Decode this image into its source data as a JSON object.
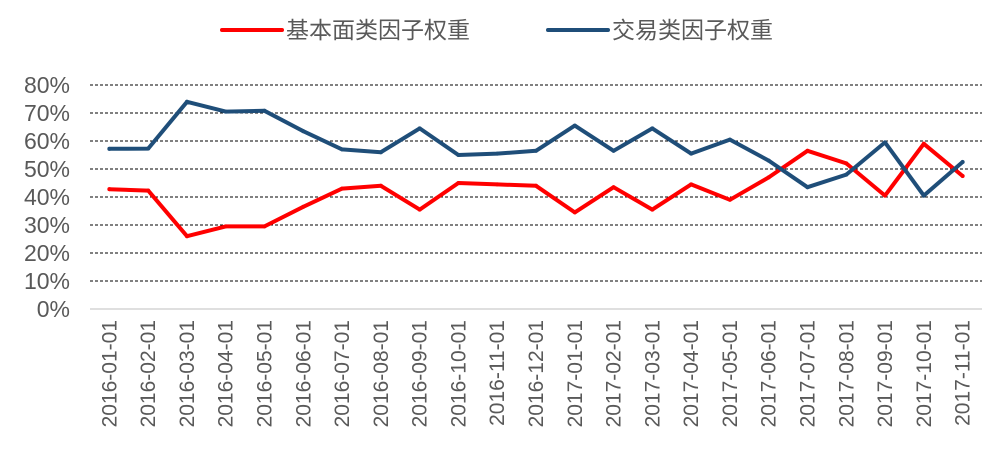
{
  "chart_data": {
    "type": "line",
    "title": "",
    "xlabel": "",
    "ylabel": "",
    "ylim": [
      0,
      80
    ],
    "yticks": [
      "0%",
      "10%",
      "20%",
      "30%",
      "40%",
      "50%",
      "60%",
      "70%",
      "80%"
    ],
    "grid": "horizontal-dashed",
    "legend_position": "top-center",
    "categories": [
      "2016-01-01",
      "2016-02-01",
      "2016-03-01",
      "2016-04-01",
      "2016-05-01",
      "2016-06-01",
      "2016-07-01",
      "2016-08-01",
      "2016-09-01",
      "2016-10-01",
      "2016-11-01",
      "2016-12-01",
      "2017-01-01",
      "2017-02-01",
      "2017-03-01",
      "2017-04-01",
      "2017-05-01",
      "2017-06-01",
      "2017-07-01",
      "2017-08-01",
      "2017-09-01",
      "2017-10-01",
      "2017-11-01"
    ],
    "series": [
      {
        "name": "基本面类因子权重",
        "color": "#ff0000",
        "values": [
          42.8,
          42.3,
          26.0,
          29.5,
          29.5,
          36.5,
          43.0,
          44.0,
          35.5,
          45.0,
          44.5,
          44.0,
          34.5,
          43.5,
          35.5,
          44.5,
          39.0,
          47.0,
          56.5,
          52.0,
          40.5,
          59.0,
          47.5
        ]
      },
      {
        "name": "交易类因子权重",
        "color": "#1f4e79",
        "values": [
          57.2,
          57.3,
          74.0,
          70.5,
          70.8,
          63.5,
          57.0,
          56.0,
          64.5,
          55.0,
          55.5,
          56.5,
          65.5,
          56.5,
          64.5,
          55.5,
          60.5,
          53.0,
          43.5,
          48.0,
          59.5,
          40.5,
          52.5
        ]
      }
    ]
  }
}
